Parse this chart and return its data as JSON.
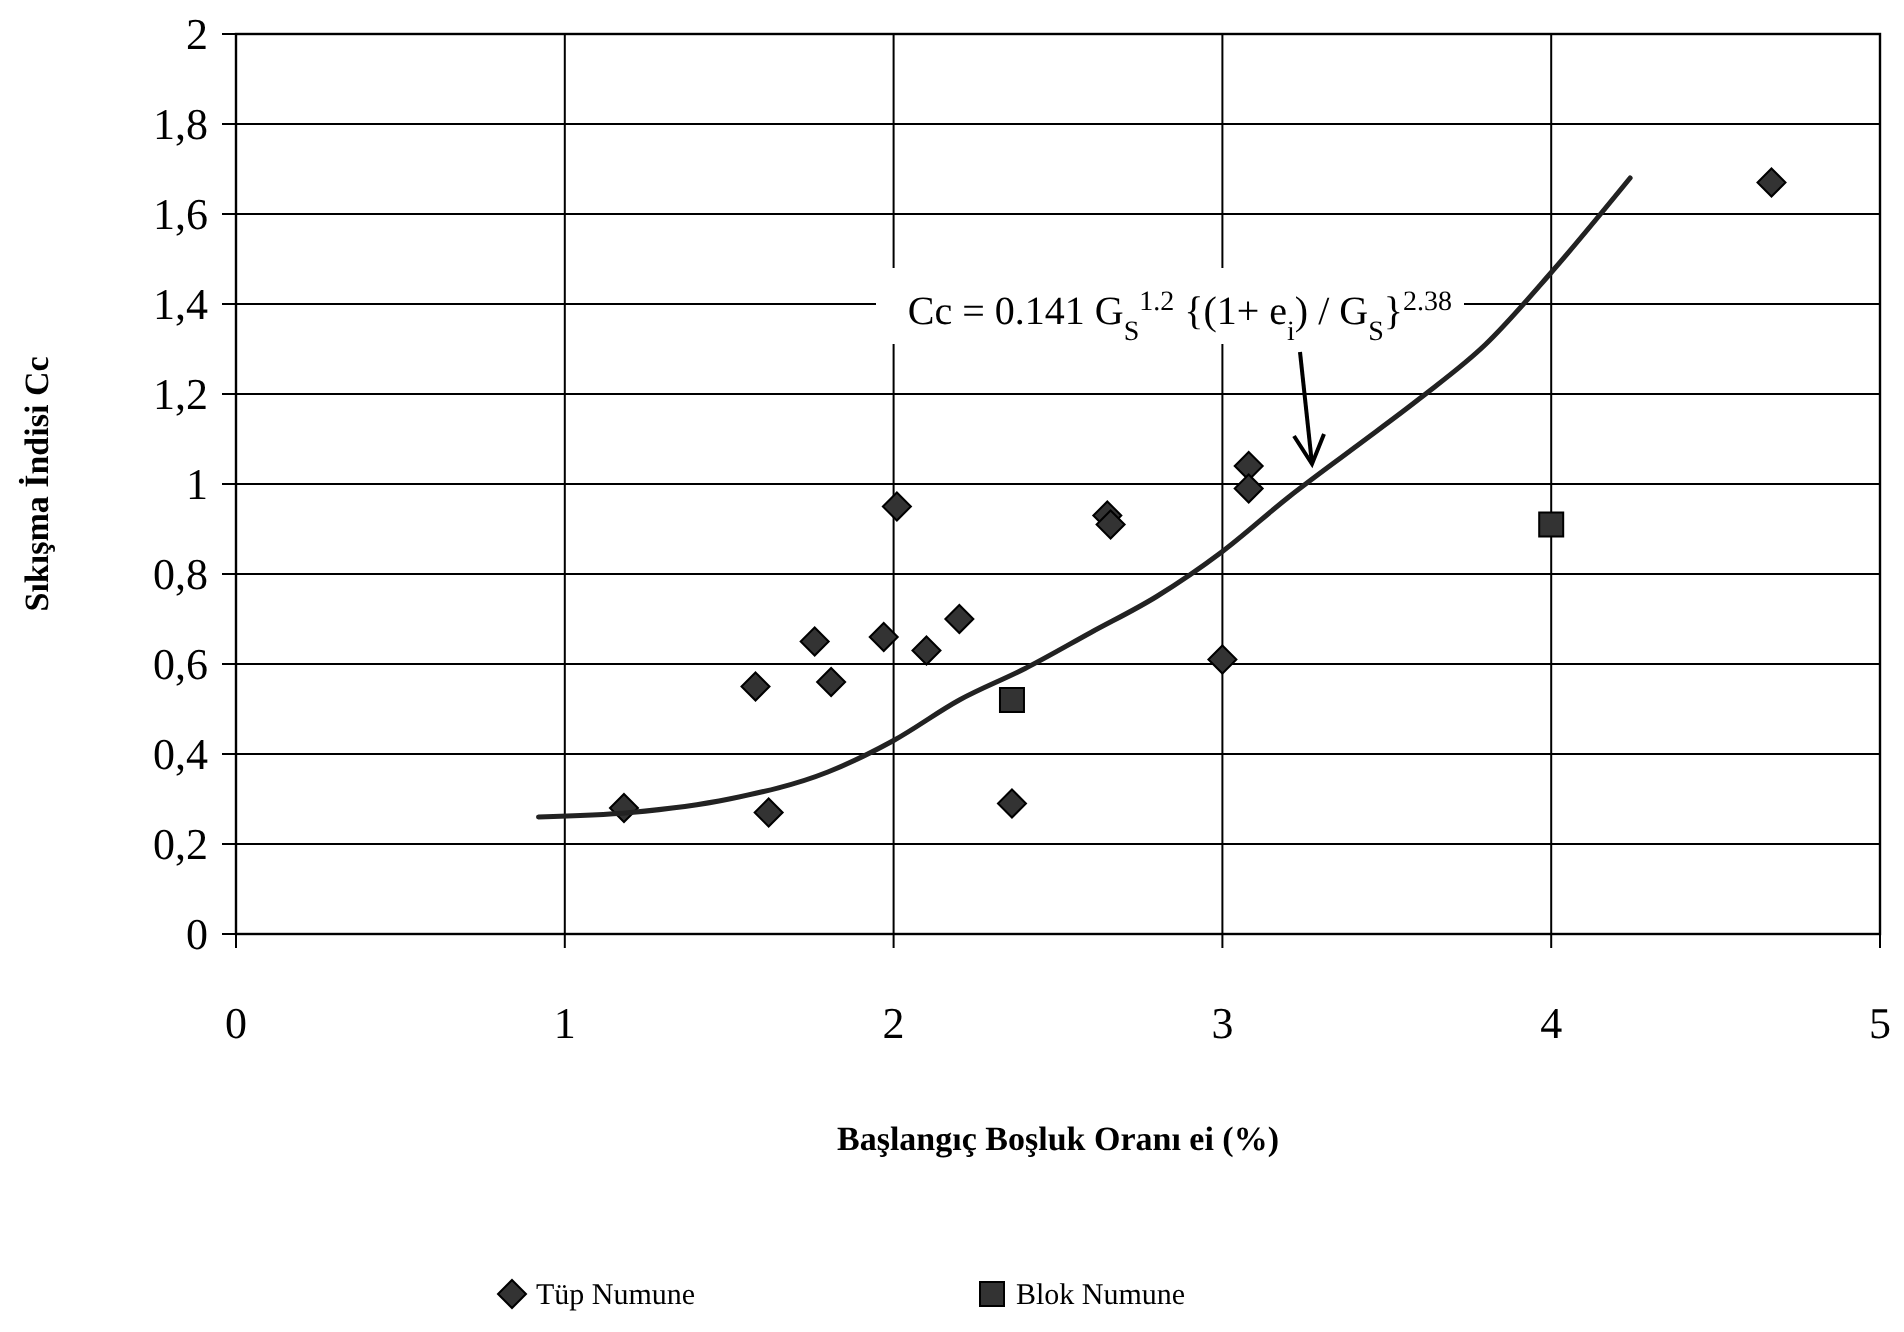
{
  "chart_data": {
    "type": "scatter",
    "xlabel": "Başlangıç Boşluk Oranı ei (%)",
    "ylabel": "Sıkışma İndisi Cc",
    "xlim": [
      0,
      5
    ],
    "xticks": [
      0,
      1,
      2,
      3,
      4,
      5
    ],
    "ylim": [
      0,
      2
    ],
    "yticks": [
      0,
      {
        "value": 0.2,
        "label": "0,2"
      },
      {
        "value": 0.4,
        "label": "0,4"
      },
      {
        "value": 0.6,
        "label": "0,6"
      },
      {
        "value": 0.8,
        "label": "0,8"
      },
      1,
      {
        "value": 1.2,
        "label": "1,2"
      },
      {
        "value": 1.4,
        "label": "1,4"
      },
      {
        "value": 1.6,
        "label": "1,6"
      },
      {
        "value": 1.8,
        "label": "1,8"
      },
      2
    ],
    "grid": true,
    "legend": "bottom",
    "annotations": [
      "Cc = 0.141 G$_{S}$$^{1.2}$ {(1+ e$_{i}$) / G$_{S}$}$^{2.38}$"
    ],
    "series": [
      {
        "name": "Tüp Numune",
        "marker": "diamond",
        "color": "#333333",
        "x": [
          1.18,
          1.58,
          1.62,
          1.76,
          1.81,
          1.97,
          2.01,
          2.1,
          2.2,
          2.36,
          2.65,
          2.66,
          3.0,
          3.08,
          3.08,
          4.67
        ],
        "values": [
          0.28,
          0.55,
          0.27,
          0.65,
          0.56,
          0.66,
          0.95,
          0.63,
          0.7,
          0.29,
          0.93,
          0.91,
          0.61,
          1.04,
          0.99,
          1.67
        ]
      },
      {
        "name": "Blok Numune",
        "marker": "square",
        "color": "#333333",
        "x": [
          2.36,
          4.0
        ],
        "values": [
          0.52,
          0.91
        ]
      },
      {
        "type": "line",
        "marker": "none",
        "line_style": "solid",
        "color": "#222222",
        "x": [
          0.92,
          1.2,
          1.5,
          1.8,
          2.0,
          2.2,
          2.4,
          2.6,
          2.8,
          3.0,
          3.2,
          3.4,
          3.6,
          3.8,
          4.0,
          4.24
        ],
        "values": [
          0.26,
          0.27,
          0.3,
          0.36,
          0.43,
          0.52,
          0.59,
          0.67,
          0.75,
          0.85,
          0.97,
          1.08,
          1.19,
          1.31,
          1.47,
          1.68
        ]
      }
    ]
  }
}
